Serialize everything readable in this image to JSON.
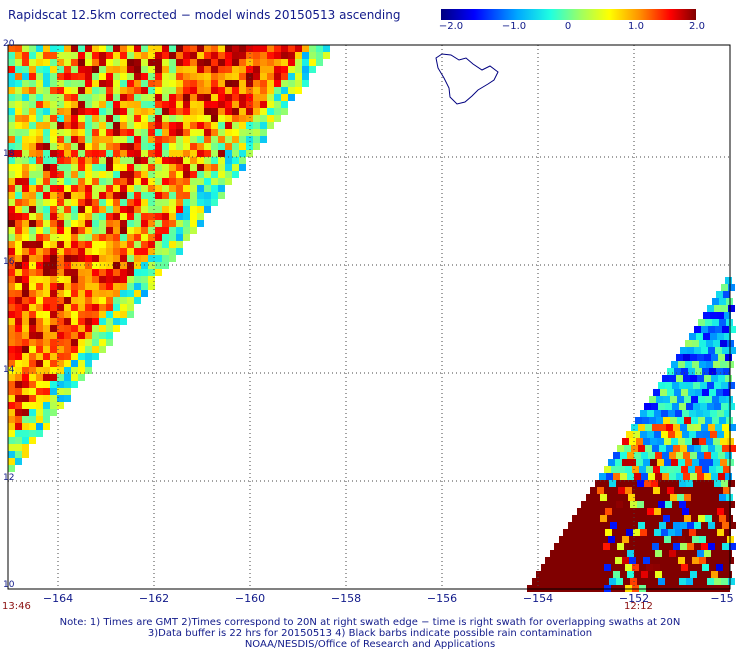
{
  "title": "Rapidscat 12.5km corrected − model winds 20150513 ascending",
  "colorbar": {
    "labels": [
      "−2.0",
      "−1.0",
      "0",
      "1.0",
      "2.0"
    ],
    "range": [
      -2.0,
      2.0
    ]
  },
  "colors": {
    "text": "#111a8a",
    "time_text": "#8b1010",
    "grid": "#444444",
    "coastline": "#000080"
  },
  "axes": {
    "lat_labels": [
      "20",
      "18",
      "16",
      "14",
      "12",
      "10"
    ],
    "lon_labels": [
      "−164",
      "−162",
      "−160",
      "−158",
      "−156",
      "−154",
      "−152",
      "−15"
    ],
    "lat_range": [
      10,
      20
    ],
    "lon_range": [
      -165.2,
      -150.1
    ],
    "grid": "dotted"
  },
  "times": {
    "left": "13:46",
    "right": "12:12"
  },
  "notes": {
    "line1": "Note: 1) Times are GMT 2)Times correspond to 20N at right swath edge − time is right swath for overlapping swaths at 20N",
    "line2": "3)Data buffer is 22 hrs for 20150513 4) Black barbs indicate possible rain contamination",
    "line3": "NOAA/NESDIS/Office of Research and Applications"
  }
}
